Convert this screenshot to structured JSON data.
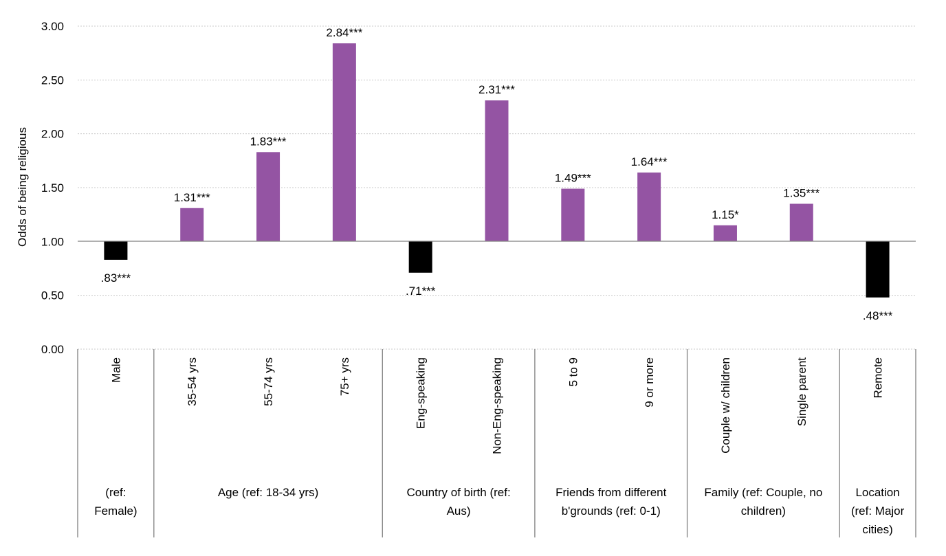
{
  "chart_data": {
    "type": "bar",
    "title": "",
    "ylabel": "Odds of being religious",
    "xlabel": "",
    "ylim": [
      0,
      3
    ],
    "yticks": [
      "0.00",
      "0.50",
      "1.00",
      "1.50",
      "2.00",
      "2.50",
      "3.00"
    ],
    "baseline": 1.0,
    "grid": true,
    "colors": {
      "above": "#9454A3",
      "below": "#000000"
    },
    "bars": [
      {
        "category": "Male",
        "value": 0.83,
        "label": ".83***",
        "group": 0
      },
      {
        "category": "35-54 yrs",
        "value": 1.31,
        "label": "1.31***",
        "group": 1
      },
      {
        "category": "55-74 yrs",
        "value": 1.83,
        "label": "1.83***",
        "group": 1
      },
      {
        "category": "75+ yrs",
        "value": 2.84,
        "label": "2.84***",
        "group": 1
      },
      {
        "category": "Eng-speaking",
        "value": 0.71,
        "label": ".71***",
        "group": 2
      },
      {
        "category": "Non-Eng-speaking",
        "value": 2.31,
        "label": "2.31***",
        "group": 2
      },
      {
        "category": "5 to 9",
        "value": 1.49,
        "label": "1.49***",
        "group": 3
      },
      {
        "category": "9 or more",
        "value": 1.64,
        "label": "1.64***",
        "group": 3
      },
      {
        "category": "Couple w/ children",
        "value": 1.15,
        "label": "1.15*",
        "group": 4
      },
      {
        "category": "Single parent",
        "value": 1.35,
        "label": "1.35***",
        "group": 4
      },
      {
        "category": "Remote",
        "value": 0.48,
        "label": ".48***",
        "group": 5
      }
    ],
    "groups": [
      {
        "lines": [
          "(ref:",
          "Female)"
        ]
      },
      {
        "lines": [
          "Age (ref: 18-34 yrs)"
        ]
      },
      {
        "lines": [
          "Country of birth (ref:",
          "Aus)"
        ]
      },
      {
        "lines": [
          "Friends from different",
          "b'grounds (ref: 0-1)"
        ]
      },
      {
        "lines": [
          "Family (ref: Couple, no",
          "children)"
        ]
      },
      {
        "lines": [
          "Location",
          "(ref: Major",
          "cities)"
        ]
      }
    ]
  }
}
